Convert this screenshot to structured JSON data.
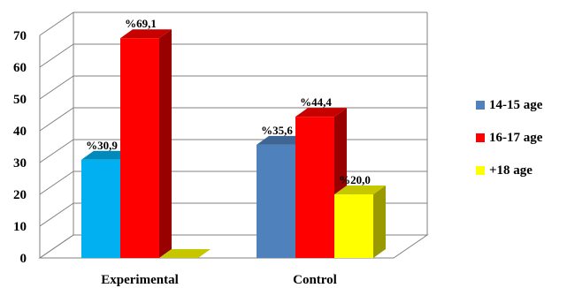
{
  "chart_data": {
    "type": "bar",
    "categories": [
      "Experimental",
      "Control"
    ],
    "series": [
      {
        "name": "14-15 age",
        "values": [
          null,
          35.6
        ],
        "data_labels": [
          "",
          "%35,6"
        ],
        "colors": [
          "#00b0f0",
          "#4f81bd"
        ]
      },
      {
        "name": "16-17 age",
        "values": [
          69.1,
          44.4
        ],
        "data_labels": [
          "%69,1",
          "%44,4"
        ],
        "colors": [
          "#ff0000",
          "#ff0000"
        ]
      },
      {
        "name": "+18 age",
        "values": [
          0,
          20.0
        ],
        "data_labels": [
          "",
          "%20,0"
        ],
        "colors": [
          "#ffff00",
          "#ffff00"
        ]
      }
    ],
    "extra_labels": [
      {
        "category": "Experimental",
        "series": 0,
        "value": 30.9,
        "label": "%30,9",
        "color": "#00b0f0"
      }
    ],
    "yticks": [
      "0",
      "10",
      "20",
      "30",
      "40",
      "50",
      "60",
      "70"
    ],
    "ylim": [
      0,
      70
    ],
    "grid": true,
    "legend_position": "right",
    "legend": [
      {
        "label": "14-15 age",
        "color": "#4f81bd"
      },
      {
        "label": "16-17 age",
        "color": "#ff0000"
      },
      {
        "label": "+18 age",
        "color": "#ffff00"
      }
    ]
  }
}
